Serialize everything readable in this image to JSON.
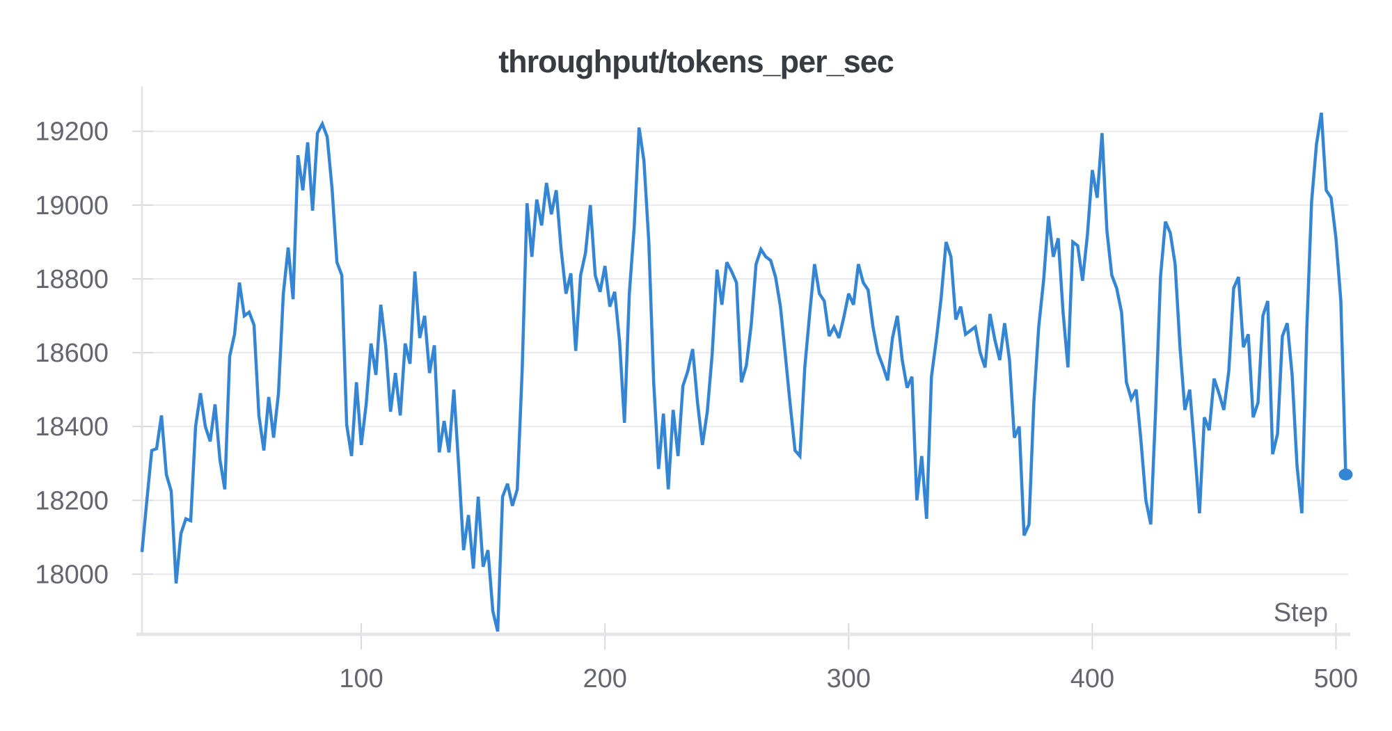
{
  "page": {
    "background": "#ffffff"
  },
  "chart_data": {
    "type": "line",
    "title": "throughput/tokens_per_sec",
    "xlabel": "Step",
    "ylabel": "",
    "legend": "none",
    "grid": "horizontal",
    "xlim": [
      10,
      505
    ],
    "ylim": [
      17837,
      19322
    ],
    "xticks": [
      100,
      200,
      300,
      400,
      500
    ],
    "yticks": [
      19200,
      19000,
      18800,
      18600,
      18400,
      18200,
      18000
    ],
    "colors": {
      "line": "#3585d5",
      "endpoint": "#3585d5",
      "grid": "#eaeaee",
      "axis": "#e4e4e9",
      "tick": "#d9dade",
      "tick_label": "#64656f",
      "title": "#373b42",
      "axis_label": "#64656f"
    },
    "series": [
      {
        "name": "throughput/tokens_per_sec",
        "color": "#3585d5",
        "endpoint_marker": true,
        "x_start": 10,
        "x_step": 2,
        "x_end": 504,
        "values": [
          18060,
          18200,
          18335,
          18340,
          18430,
          18270,
          18225,
          17975,
          18110,
          18150,
          18145,
          18400,
          18490,
          18400,
          18360,
          18460,
          18310,
          18230,
          18590,
          18650,
          18790,
          18700,
          18710,
          18675,
          18430,
          18335,
          18480,
          18370,
          18490,
          18760,
          18885,
          18745,
          19135,
          19040,
          19170,
          18985,
          19195,
          19220,
          19185,
          19045,
          18845,
          18810,
          18405,
          18320,
          18520,
          18350,
          18460,
          18625,
          18540,
          18730,
          18620,
          18440,
          18545,
          18430,
          18625,
          18570,
          18820,
          18640,
          18700,
          18545,
          18620,
          18330,
          18415,
          18330,
          18500,
          18290,
          18065,
          18160,
          18015,
          18210,
          18020,
          18065,
          17900,
          17845,
          18210,
          18245,
          18185,
          18230,
          18550,
          19005,
          18860,
          19015,
          18945,
          19060,
          18975,
          19040,
          18880,
          18760,
          18815,
          18605,
          18810,
          18870,
          19000,
          18810,
          18765,
          18835,
          18725,
          18765,
          18630,
          18410,
          18760,
          18940,
          19210,
          19120,
          18900,
          18520,
          18285,
          18435,
          18230,
          18445,
          18320,
          18510,
          18550,
          18610,
          18465,
          18350,
          18440,
          18595,
          18825,
          18730,
          18845,
          18820,
          18790,
          18520,
          18565,
          18675,
          18840,
          18880,
          18860,
          18850,
          18805,
          18725,
          18595,
          18460,
          18335,
          18320,
          18560,
          18705,
          18840,
          18760,
          18740,
          18645,
          18670,
          18640,
          18695,
          18760,
          18730,
          18840,
          18790,
          18770,
          18670,
          18600,
          18565,
          18525,
          18640,
          18700,
          18580,
          18505,
          18535,
          18200,
          18320,
          18150,
          18535,
          18635,
          18750,
          18900,
          18860,
          18690,
          18725,
          18650,
          18660,
          18670,
          18600,
          18560,
          18705,
          18635,
          18580,
          18680,
          18580,
          18370,
          18400,
          18105,
          18135,
          18465,
          18670,
          18795,
          18970,
          18860,
          18910,
          18710,
          18560,
          18900,
          18890,
          18795,
          18920,
          19095,
          19020,
          19195,
          18930,
          18810,
          18775,
          18710,
          18520,
          18475,
          18500,
          18360,
          18200,
          18135,
          18445,
          18805,
          18955,
          18925,
          18840,
          18615,
          18445,
          18500,
          18340,
          18165,
          18425,
          18390,
          18530,
          18490,
          18445,
          18550,
          18775,
          18805,
          18615,
          18650,
          18425,
          18465,
          18700,
          18740,
          18325,
          18380,
          18645,
          18680,
          18540,
          18295,
          18165,
          18660,
          19010,
          19165,
          19250,
          19040,
          19020,
          18910,
          18740,
          18270
        ]
      }
    ]
  }
}
